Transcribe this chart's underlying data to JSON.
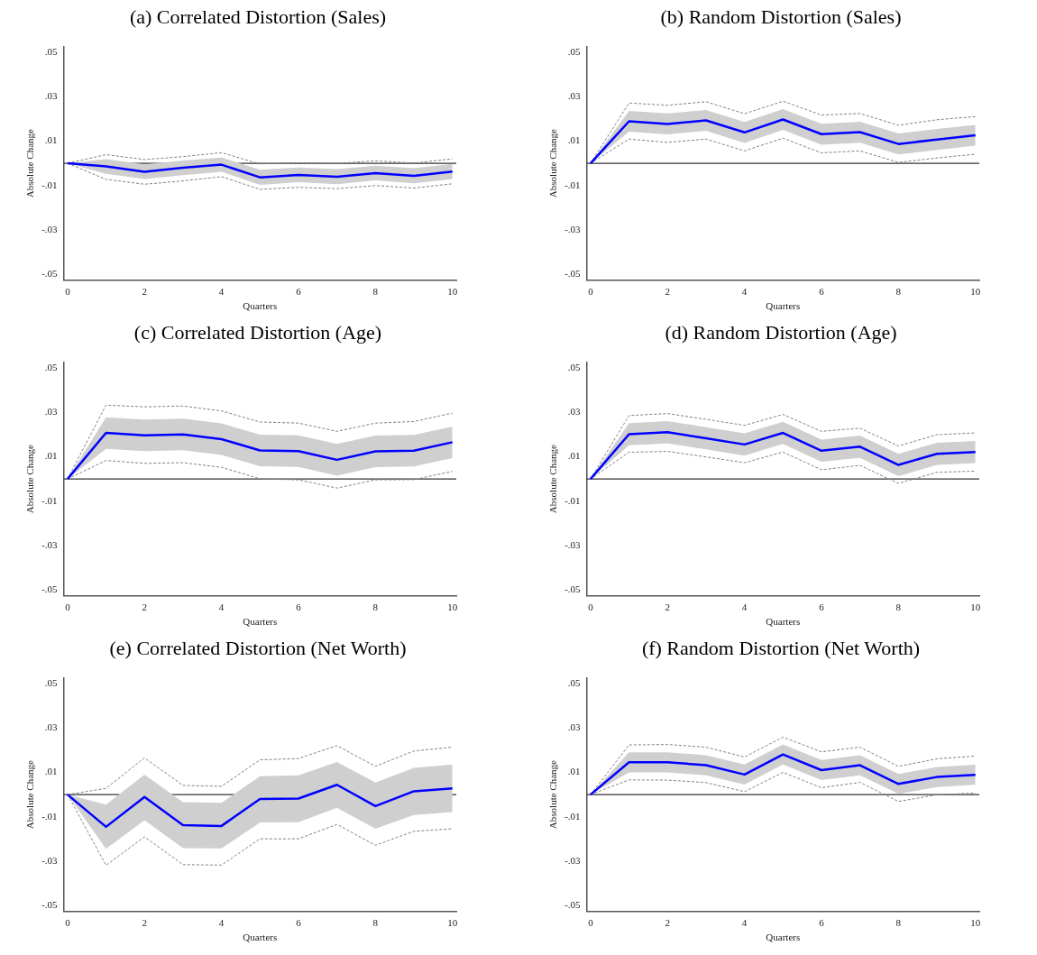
{
  "chart_data": [
    {
      "type": "line",
      "title": "(a) Correlated Distortion (Sales)",
      "xlabel": "Quarters",
      "ylabel": "Absolute Change",
      "x": [
        0,
        1,
        2,
        3,
        4,
        5,
        6,
        7,
        8,
        9,
        10
      ],
      "xlim": [
        -0.1,
        10.1
      ],
      "xticks": [
        0,
        2,
        4,
        6,
        8,
        10
      ],
      "ylim": [
        -0.0525,
        0.0525
      ],
      "yticks": [
        {
          "value": -0.05,
          "label": "-.05"
        },
        {
          "value": -0.03,
          "label": "-.03"
        },
        {
          "value": -0.01,
          "label": "-.01"
        },
        {
          "value": 0.01,
          "label": ".01"
        },
        {
          "value": 0.03,
          "label": ".03"
        },
        {
          "value": 0.05,
          "label": ".05"
        }
      ],
      "ref_lines": [
        {
          "axis": "y",
          "value": 0,
          "color": "#333333"
        }
      ],
      "series": [
        {
          "color": "#0000ff",
          "values": [
            0,
            -0.0014,
            -0.0038,
            -0.002,
            -0.0006,
            -0.0063,
            -0.0052,
            -0.006,
            -0.0044,
            -0.0056,
            -0.0037
          ],
          "lower": [
            0,
            -0.0047,
            -0.0071,
            -0.0053,
            -0.0038,
            -0.0097,
            -0.0085,
            -0.0094,
            -0.0077,
            -0.009,
            -0.0071
          ],
          "upper": [
            0,
            0.0019,
            -0.0005,
            0.0013,
            0.0026,
            -0.0029,
            -0.0019,
            -0.0026,
            -0.0011,
            -0.0022,
            -0.0003
          ]
        },
        {
          "color": "#808080",
          "line_style": "dashed",
          "values": [
            0,
            0.0039,
            0.0017,
            0.003,
            0.0048,
            -0.0003,
            0.0003,
            0,
            0.0011,
            0.0001,
            0.002
          ]
        },
        {
          "color": "#808080",
          "line_style": "dashed",
          "values": [
            0,
            -0.0072,
            -0.0094,
            -0.0079,
            -0.006,
            -0.0117,
            -0.0108,
            -0.0114,
            -0.01,
            -0.0111,
            -0.0092
          ]
        }
      ]
    },
    {
      "type": "line",
      "title": "(b) Random Distortion (Sales)",
      "xlabel": "Quarters",
      "ylabel": "Absolute Change",
      "x": [
        0,
        1,
        2,
        3,
        4,
        5,
        6,
        7,
        8,
        9,
        10
      ],
      "xlim": [
        -0.1,
        10.1
      ],
      "xticks": [
        0,
        2,
        4,
        6,
        8,
        10
      ],
      "ylim": [
        -0.0525,
        0.0525
      ],
      "yticks": [
        {
          "value": -0.05,
          "label": "-.05"
        },
        {
          "value": -0.03,
          "label": "-.03"
        },
        {
          "value": -0.01,
          "label": "-.01"
        },
        {
          "value": 0.01,
          "label": ".01"
        },
        {
          "value": 0.03,
          "label": ".03"
        },
        {
          "value": 0.05,
          "label": ".05"
        }
      ],
      "ref_lines": [
        {
          "axis": "y",
          "value": 0,
          "color": "#333333"
        }
      ],
      "series": [
        {
          "color": "#0000ff",
          "values": [
            0,
            0.0189,
            0.0177,
            0.0193,
            0.0139,
            0.0197,
            0.0131,
            0.014,
            0.0087,
            0.0107,
            0.0126
          ],
          "lower": [
            0,
            0.0142,
            0.013,
            0.0146,
            0.0092,
            0.015,
            0.0084,
            0.0093,
            0.004,
            0.006,
            0.0079
          ],
          "upper": [
            0,
            0.0236,
            0.0224,
            0.024,
            0.0186,
            0.0244,
            0.0178,
            0.0187,
            0.0134,
            0.0154,
            0.0173
          ]
        },
        {
          "color": "#808080",
          "line_style": "dashed",
          "values": [
            0,
            0.0271,
            0.0261,
            0.0277,
            0.0223,
            0.0279,
            0.0217,
            0.0224,
            0.0171,
            0.0196,
            0.021
          ]
        },
        {
          "color": "#808080",
          "line_style": "dashed",
          "values": [
            0,
            0.0109,
            0.0094,
            0.0109,
            0.0056,
            0.0113,
            0.0047,
            0.0056,
            0.0004,
            0.0024,
            0.0041
          ]
        }
      ]
    },
    {
      "type": "line",
      "title": "(c) Correlated Distortion (Age)",
      "xlabel": "Quarters",
      "ylabel": "Absolute Change",
      "x": [
        0,
        1,
        2,
        3,
        4,
        5,
        6,
        7,
        8,
        9,
        10
      ],
      "xlim": [
        -0.1,
        10.1
      ],
      "xticks": [
        0,
        2,
        4,
        6,
        8,
        10
      ],
      "ylim": [
        -0.0525,
        0.0525
      ],
      "yticks": [
        {
          "value": -0.05,
          "label": "-.05"
        },
        {
          "value": -0.03,
          "label": "-.03"
        },
        {
          "value": -0.01,
          "label": "-.01"
        },
        {
          "value": 0.01,
          "label": ".01"
        },
        {
          "value": 0.03,
          "label": ".03"
        },
        {
          "value": 0.05,
          "label": ".05"
        }
      ],
      "ref_lines": [
        {
          "axis": "y",
          "value": 0,
          "color": "#333333"
        }
      ],
      "series": [
        {
          "color": "#0000ff",
          "values": [
            0,
            0.0207,
            0.0196,
            0.02,
            0.0179,
            0.0128,
            0.0125,
            0.0086,
            0.0124,
            0.0127,
            0.0165
          ],
          "lower": [
            0,
            0.0135,
            0.0125,
            0.0129,
            0.0108,
            0.0057,
            0.0054,
            0.0015,
            0.0053,
            0.0056,
            0.0094
          ],
          "upper": [
            0,
            0.0277,
            0.0267,
            0.0271,
            0.025,
            0.0199,
            0.0196,
            0.0157,
            0.0195,
            0.0198,
            0.0236
          ]
        },
        {
          "color": "#808080",
          "line_style": "dashed",
          "values": [
            0,
            0.0332,
            0.0324,
            0.0328,
            0.0306,
            0.0256,
            0.0251,
            0.0214,
            0.0251,
            0.0258,
            0.0296
          ]
        },
        {
          "color": "#808080",
          "line_style": "dashed",
          "values": [
            0,
            0.0083,
            0.007,
            0.0073,
            0.0052,
            0.0001,
            -0.0004,
            -0.0041,
            -0.0004,
            -0.0003,
            0.0034
          ]
        }
      ]
    },
    {
      "type": "line",
      "title": "(d) Random Distortion (Age)",
      "xlabel": "Quarters",
      "ylabel": "Absolute Change",
      "x": [
        0,
        1,
        2,
        3,
        4,
        5,
        6,
        7,
        8,
        9,
        10
      ],
      "xlim": [
        -0.1,
        10.1
      ],
      "xticks": [
        0,
        2,
        4,
        6,
        8,
        10
      ],
      "ylim": [
        -0.0525,
        0.0525
      ],
      "yticks": [
        {
          "value": -0.05,
          "label": "-.05"
        },
        {
          "value": -0.03,
          "label": "-.03"
        },
        {
          "value": -0.01,
          "label": "-.01"
        },
        {
          "value": 0.01,
          "label": ".01"
        },
        {
          "value": 0.03,
          "label": ".03"
        },
        {
          "value": 0.05,
          "label": ".05"
        }
      ],
      "ref_lines": [
        {
          "axis": "y",
          "value": 0,
          "color": "#333333"
        }
      ],
      "series": [
        {
          "color": "#0000ff",
          "values": [
            0,
            0.0201,
            0.021,
            0.0183,
            0.0155,
            0.0207,
            0.0127,
            0.0145,
            0.0063,
            0.0113,
            0.0121
          ],
          "lower": [
            0,
            0.0151,
            0.016,
            0.0133,
            0.0105,
            0.0157,
            0.0077,
            0.0095,
            0.0013,
            0.0063,
            0.0071
          ],
          "upper": [
            0,
            0.0251,
            0.026,
            0.0233,
            0.0205,
            0.0257,
            0.0177,
            0.0195,
            0.0113,
            0.0163,
            0.0171
          ]
        },
        {
          "color": "#808080",
          "line_style": "dashed",
          "values": [
            0,
            0.0285,
            0.0294,
            0.0268,
            0.0241,
            0.029,
            0.0214,
            0.0228,
            0.0148,
            0.0199,
            0.0207
          ]
        },
        {
          "color": "#808080",
          "line_style": "dashed",
          "values": [
            0,
            0.012,
            0.0124,
            0.0099,
            0.0073,
            0.0121,
            0.0041,
            0.0061,
            -0.002,
            0.003,
            0.0035
          ]
        }
      ]
    },
    {
      "type": "line",
      "title": "(e) Correlated Distortion (Net Worth)",
      "xlabel": "Quarters",
      "ylabel": "Absolute Change",
      "x": [
        0,
        1,
        2,
        3,
        4,
        5,
        6,
        7,
        8,
        9,
        10
      ],
      "xlim": [
        -0.1,
        10.1
      ],
      "xticks": [
        0,
        2,
        4,
        6,
        8,
        10
      ],
      "ylim": [
        -0.0525,
        0.0525
      ],
      "yticks": [
        {
          "value": -0.05,
          "label": "-.05"
        },
        {
          "value": -0.03,
          "label": "-.03"
        },
        {
          "value": -0.01,
          "label": "-.01"
        },
        {
          "value": 0.01,
          "label": ".01"
        },
        {
          "value": 0.03,
          "label": ".03"
        },
        {
          "value": 0.05,
          "label": ".05"
        }
      ],
      "ref_lines": [
        {
          "axis": "y",
          "value": 0,
          "color": "#333333"
        }
      ],
      "series": [
        {
          "color": "#0000ff",
          "values": [
            0,
            -0.0145,
            -0.0011,
            -0.0137,
            -0.0141,
            -0.002,
            -0.0018,
            0.0044,
            -0.0052,
            0.0015,
            0.0028
          ],
          "lower": [
            0,
            -0.0244,
            -0.0115,
            -0.0241,
            -0.0242,
            -0.0125,
            -0.0124,
            -0.0059,
            -0.0154,
            -0.0092,
            -0.0079
          ],
          "upper": [
            0,
            -0.0045,
            0.009,
            -0.0034,
            -0.0037,
            0.0082,
            0.0087,
            0.0146,
            0.0054,
            0.012,
            0.0135
          ]
        },
        {
          "color": "#808080",
          "line_style": "dashed",
          "values": [
            0,
            0.0028,
            0.0165,
            0.0041,
            0.0037,
            0.0156,
            0.0162,
            0.022,
            0.0127,
            0.0196,
            0.0213
          ]
        },
        {
          "color": "#808080",
          "line_style": "dashed",
          "values": [
            0,
            -0.0318,
            -0.019,
            -0.0315,
            -0.0317,
            -0.0199,
            -0.0199,
            -0.0134,
            -0.0228,
            -0.0165,
            -0.0154
          ]
        }
      ]
    },
    {
      "type": "line",
      "title": "(f) Random Distortion (Net Worth)",
      "xlabel": "Quarters",
      "ylabel": "Absolute Change",
      "x": [
        0,
        1,
        2,
        3,
        4,
        5,
        6,
        7,
        8,
        9,
        10
      ],
      "xlim": [
        -0.1,
        10.1
      ],
      "xticks": [
        0,
        2,
        4,
        6,
        8,
        10
      ],
      "ylim": [
        -0.0525,
        0.0525
      ],
      "yticks": [
        {
          "value": -0.05,
          "label": "-.05"
        },
        {
          "value": -0.03,
          "label": "-.03"
        },
        {
          "value": -0.01,
          "label": "-.01"
        },
        {
          "value": 0.01,
          "label": ".01"
        },
        {
          "value": 0.03,
          "label": ".03"
        },
        {
          "value": 0.05,
          "label": ".05"
        }
      ],
      "ref_lines": [
        {
          "axis": "y",
          "value": 0,
          "color": "#333333"
        }
      ],
      "series": [
        {
          "color": "#0000ff",
          "values": [
            0,
            0.0145,
            0.0145,
            0.0132,
            0.009,
            0.018,
            0.011,
            0.0132,
            0.0048,
            0.0079,
            0.0089
          ],
          "lower": [
            0,
            0.01,
            0.01,
            0.0087,
            0.0045,
            0.0135,
            0.0065,
            0.0087,
            0.0003,
            0.0034,
            0.0044
          ],
          "upper": [
            0,
            0.019,
            0.019,
            0.0177,
            0.0135,
            0.0225,
            0.0155,
            0.0177,
            0.0093,
            0.0124,
            0.0134
          ]
        },
        {
          "color": "#808080",
          "line_style": "dashed",
          "values": [
            0,
            0.0223,
            0.0225,
            0.0213,
            0.0169,
            0.0258,
            0.0192,
            0.0213,
            0.0127,
            0.0161,
            0.0173
          ]
        },
        {
          "color": "#808080",
          "line_style": "dashed",
          "values": [
            0,
            0.0066,
            0.0065,
            0.0054,
            0.0013,
            0.01,
            0.0031,
            0.0055,
            -0.0031,
            -0.0001,
            0.0007
          ]
        }
      ]
    }
  ]
}
